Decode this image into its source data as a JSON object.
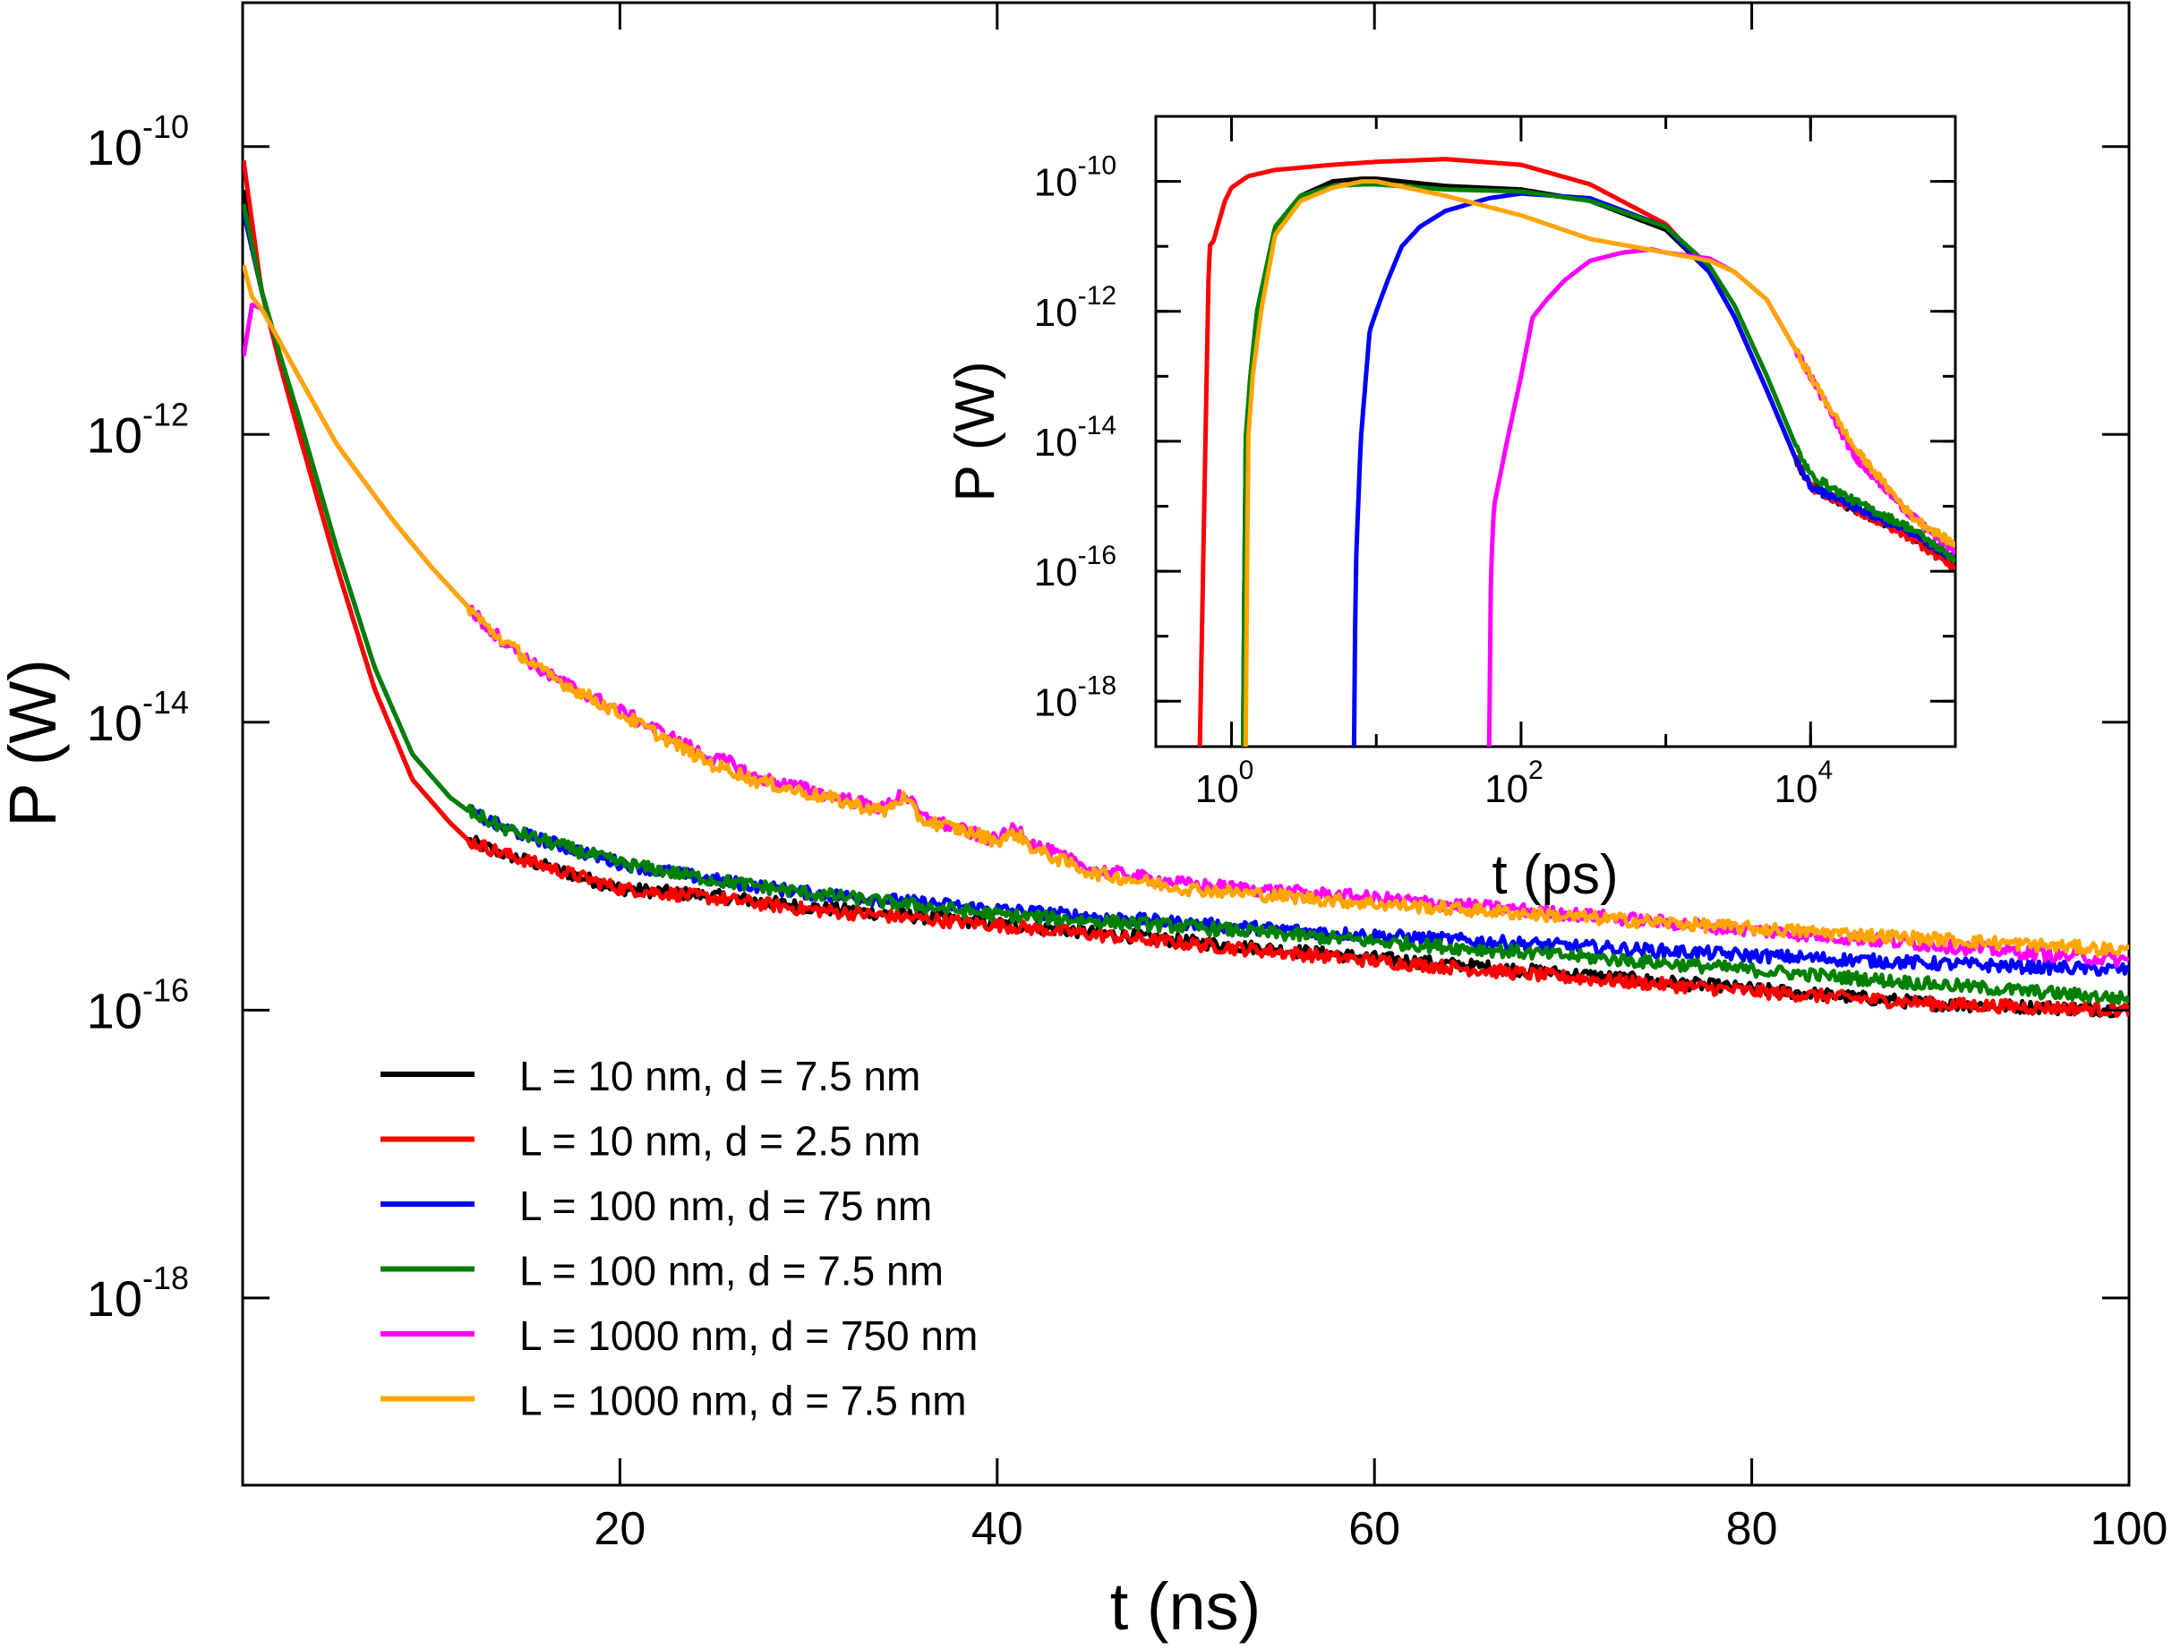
{
  "chart_data": [
    {
      "type": "line",
      "xlabel": "t (ns)",
      "ylabel": "P (W)",
      "xscale": "linear",
      "yscale": "log",
      "xlim": [
        0,
        100
      ],
      "ylim": [
        5e-20,
        1e-09
      ],
      "xticks": [
        20,
        40,
        60,
        80,
        100
      ],
      "xtick_labels": [
        "20",
        "40",
        "60",
        "80",
        "100"
      ],
      "yticks": [
        {
          "value": 1e-10,
          "base": "10",
          "exp": "-10"
        },
        {
          "value": 1e-12,
          "base": "10",
          "exp": "-12"
        },
        {
          "value": 1e-14,
          "base": "10",
          "exp": "-14"
        },
        {
          "value": 1e-16,
          "base": "10",
          "exp": "-16"
        },
        {
          "value": 1e-18,
          "base": "10",
          "exp": "-18"
        }
      ],
      "grid": false,
      "legend_position": "bottom-left",
      "series": [
        {
          "name": "L = 10 nm, d = 7.5 nm",
          "color": "#000000",
          "x": [
            0.05,
            1,
            2,
            3,
            5,
            7,
            9,
            11,
            12,
            14,
            16,
            20,
            25,
            30,
            40,
            50,
            60,
            70,
            80,
            90,
            100
          ],
          "y": [
            5e-11,
            1e-11,
            3e-12,
            1e-12,
            1.2e-13,
            1.7e-14,
            4e-15,
            2e-15,
            1.5e-15,
            1.2e-15,
            1e-15,
            7e-16,
            6.2e-16,
            5.2e-16,
            4e-16,
            3e-16,
            2.3e-16,
            1.8e-16,
            1.4e-16,
            1.1e-16,
            1e-16
          ]
        },
        {
          "name": "L = 10 nm, d = 2.5 nm",
          "color": "#ff0000",
          "x": [
            0.05,
            1,
            2,
            3,
            5,
            7,
            9,
            11,
            12,
            14,
            16,
            20,
            25,
            30,
            40,
            50,
            60,
            70,
            80,
            90,
            100
          ],
          "y": [
            8e-11,
            1e-11,
            3e-12,
            1e-12,
            1.2e-13,
            1.7e-14,
            4e-15,
            2e-15,
            1.5e-15,
            1.2e-15,
            1e-15,
            7e-16,
            6e-16,
            5e-16,
            3.9e-16,
            2.9e-16,
            2.2e-16,
            1.7e-16,
            1.35e-16,
            1.1e-16,
            1e-16
          ]
        },
        {
          "name": "L = 100 nm, d = 75 nm",
          "color": "#0000ff",
          "x": [
            0.05,
            1,
            2,
            3,
            5,
            7,
            9,
            11,
            12,
            14,
            16,
            20,
            25,
            30,
            40,
            50,
            60,
            70,
            80,
            90,
            100
          ],
          "y": [
            3.5e-11,
            1e-11,
            3.5e-12,
            1.3e-12,
            1.6e-13,
            2.4e-14,
            6e-15,
            3e-15,
            2.4e-15,
            1.8e-15,
            1.5e-15,
            1.05e-15,
            8e-16,
            6.5e-16,
            5e-16,
            4e-16,
            3.3e-16,
            2.8e-16,
            2.4e-16,
            2.1e-16,
            1.9e-16
          ]
        },
        {
          "name": "L = 100 nm, d = 7.5 nm",
          "color": "#008000",
          "x": [
            0.05,
            1,
            2,
            3,
            5,
            7,
            9,
            11,
            12,
            14,
            16,
            20,
            25,
            30,
            40,
            50,
            60,
            70,
            80,
            90,
            100
          ],
          "y": [
            4e-11,
            1e-11,
            3.5e-12,
            1.3e-12,
            1.6e-13,
            2.4e-14,
            6e-15,
            3e-15,
            2.4e-15,
            1.8e-15,
            1.5e-15,
            1.05e-15,
            8e-16,
            6.5e-16,
            4.6e-16,
            3.8e-16,
            3e-16,
            2.4e-16,
            1.9e-16,
            1.5e-16,
            1.2e-16
          ]
        },
        {
          "name": "L = 1000 nm, d = 750 nm",
          "color": "#ff00ff",
          "x": [
            0.05,
            0.5,
            1,
            3,
            5,
            8,
            10,
            13,
            16,
            20,
            25,
            26,
            27,
            30,
            34,
            35,
            36,
            38,
            40,
            41,
            42,
            45,
            50,
            60,
            70,
            80,
            90,
            100
          ],
          "y": [
            3.5e-12,
            8e-12,
            7.5e-12,
            2.5e-12,
            8.5e-13,
            2.5e-13,
            1.2e-13,
            4.5e-14,
            2.2e-14,
            1.2e-14,
            5.5e-15,
            5.2e-15,
            4.2e-15,
            3.4e-15,
            2.5e-15,
            3.3e-15,
            2.2e-15,
            1.8e-15,
            1.5e-15,
            1.9e-15,
            1.4e-15,
            9.5e-16,
            7.5e-16,
            6e-16,
            4.7e-16,
            3.6e-16,
            2.8e-16,
            2.2e-16
          ]
        },
        {
          "name": "L = 1000 nm, d = 7.5 nm",
          "color": "#ffa500",
          "x": [
            0.05,
            0.5,
            1,
            3,
            5,
            8,
            10,
            13,
            16,
            20,
            25,
            26,
            27,
            30,
            34,
            35,
            36,
            38,
            40,
            41,
            42,
            45,
            50,
            60,
            70,
            80,
            90,
            100
          ],
          "y": [
            1.5e-11,
            9e-12,
            7.5e-12,
            2.5e-12,
            8.5e-13,
            2.5e-13,
            1.2e-13,
            4.5e-14,
            2.2e-14,
            1.15e-14,
            5e-15,
            4.6e-15,
            4e-15,
            3.2e-15,
            2.4e-15,
            3e-15,
            2.1e-15,
            1.8e-15,
            1.5e-15,
            1.7e-15,
            1.3e-15,
            9e-16,
            7e-16,
            5.5e-16,
            4.5e-16,
            3.7e-16,
            3.1e-16,
            2.6e-16
          ]
        }
      ]
    },
    {
      "type": "line",
      "xlabel": "t (ps)",
      "ylabel": "P (W)",
      "xscale": "log",
      "yscale": "log",
      "xlim": [
        0.3,
        100000
      ],
      "ylim": [
        2e-19,
        1e-09
      ],
      "xticks": [
        {
          "value": 1,
          "base": "10",
          "exp": "0"
        },
        {
          "value": 100,
          "base": "10",
          "exp": "2"
        },
        {
          "value": 10000,
          "base": "10",
          "exp": "4"
        }
      ],
      "yticks": [
        {
          "value": 1e-10,
          "base": "10",
          "exp": "-10"
        },
        {
          "value": 1e-12,
          "base": "10",
          "exp": "-12"
        },
        {
          "value": 1e-14,
          "base": "10",
          "exp": "-14"
        },
        {
          "value": 1e-16,
          "base": "10",
          "exp": "-16"
        },
        {
          "value": 1e-18,
          "base": "10",
          "exp": "-18"
        }
      ],
      "grid": false,
      "series": [
        {
          "name": "L = 10 nm, d = 7.5 nm",
          "color": "#000000",
          "x": [
            1.2,
            1.25,
            1.35,
            1.5,
            2,
            3,
            5,
            8,
            10,
            30,
            100,
            300,
            1000,
            2000,
            3000,
            5000,
            8000,
            10000,
            20000,
            50000,
            100000
          ],
          "y": [
            1e-19,
            1e-14,
            1e-13,
            1e-12,
            2e-11,
            6e-11,
            1e-10,
            1.1e-10,
            1.1e-10,
            8.5e-11,
            7.5e-11,
            5e-11,
            1.8e-11,
            4e-12,
            8e-13,
            6e-14,
            5e-15,
            2e-15,
            9e-16,
            3.5e-16,
            1.2e-16
          ]
        },
        {
          "name": "L = 10 nm, d = 2.5 nm",
          "color": "#ff0000",
          "x": [
            0.6,
            0.7,
            0.75,
            0.9,
            1.0,
            1.3,
            2,
            5,
            10,
            30,
            100,
            300,
            1000,
            2000,
            3000,
            5000,
            8000,
            10000,
            20000,
            50000,
            100000
          ],
          "y": [
            1e-19,
            1e-11,
            1.2e-11,
            5e-11,
            8e-11,
            1.2e-10,
            1.5e-10,
            1.8e-10,
            2e-10,
            2.2e-10,
            1.8e-10,
            9e-11,
            2.2e-11,
            4e-12,
            8e-13,
            6e-14,
            5e-15,
            2e-15,
            9e-16,
            3.2e-16,
            1.1e-16
          ]
        },
        {
          "name": "L = 100 nm, d = 75 nm",
          "color": "#0000ff",
          "x": [
            7.0,
            7.2,
            7.8,
            9,
            10,
            12,
            15,
            20,
            30,
            60,
            100,
            300,
            1000,
            2000,
            3000,
            5000,
            8000,
            10000,
            20000,
            50000,
            100000
          ],
          "y": [
            1e-19,
            1e-16,
            1e-14,
            5e-13,
            1e-12,
            3e-12,
            1e-11,
            2e-11,
            3.5e-11,
            5.5e-11,
            6.5e-11,
            5.5e-11,
            2e-11,
            4e-12,
            8e-13,
            6e-14,
            5e-15,
            2e-15,
            1e-15,
            4e-16,
            1.5e-16
          ]
        },
        {
          "name": "L = 100 nm, d = 7.5 nm",
          "color": "#008000",
          "x": [
            1.2,
            1.25,
            1.35,
            1.5,
            2,
            3,
            5,
            8,
            10,
            30,
            100,
            300,
            1000,
            2000,
            3000,
            5000,
            8000,
            10000,
            20000,
            50000,
            100000
          ],
          "y": [
            1e-19,
            1e-14,
            1e-13,
            1e-12,
            2e-11,
            6e-11,
            8.5e-11,
            9e-11,
            9e-11,
            7.5e-11,
            7e-11,
            5e-11,
            2e-11,
            5e-12,
            1.2e-12,
            1e-13,
            8e-15,
            3e-15,
            1.2e-15,
            4.5e-16,
            1.5e-16
          ]
        },
        {
          "name": "L = 1000 nm, d = 750 nm",
          "color": "#ff00ff",
          "x": [
            60,
            62,
            65,
            80,
            100,
            120,
            150,
            200,
            300,
            500,
            800,
            1000,
            2000,
            3000,
            5000,
            10000,
            20000,
            50000,
            100000
          ],
          "y": [
            1e-19,
            1e-16,
            1e-15,
            1e-14,
            1e-13,
            8e-13,
            1.5e-12,
            3e-12,
            6e-12,
            8e-12,
            9e-12,
            8e-12,
            6.5e-12,
            4e-12,
            1.5e-12,
            1e-13,
            6e-15,
            7e-16,
            2e-16
          ]
        },
        {
          "name": "L = 1000 nm, d = 7.5 nm",
          "color": "#ffa500",
          "x": [
            1.25,
            1.3,
            1.4,
            1.6,
            2,
            3,
            5,
            8,
            10,
            30,
            100,
            300,
            1000,
            2000,
            3000,
            5000,
            10000,
            20000,
            50000,
            100000
          ],
          "y": [
            1e-19,
            1e-14,
            1e-13,
            1e-12,
            1.5e-11,
            5e-11,
            8e-11,
            1e-10,
            1e-10,
            6e-11,
            3e-11,
            1.3e-11,
            8e-12,
            6e-12,
            4e-12,
            1.5e-12,
            1e-13,
            8e-15,
            7e-16,
            2.5e-16
          ]
        }
      ]
    }
  ]
}
